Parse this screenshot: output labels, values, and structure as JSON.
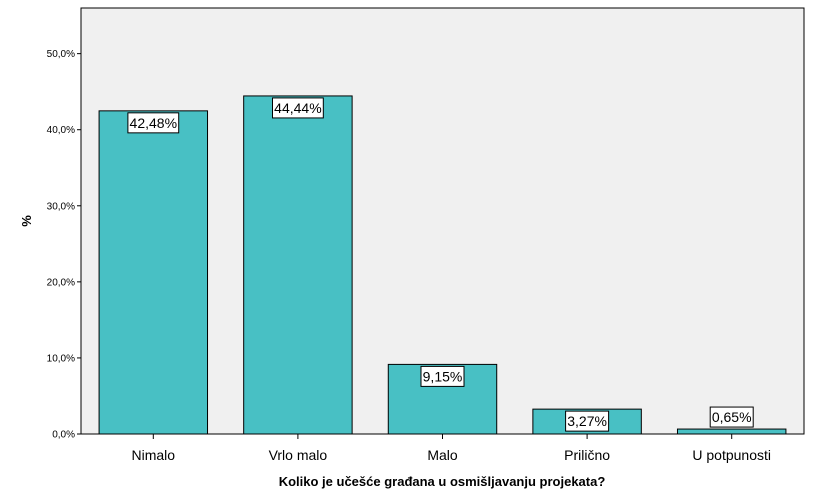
{
  "chart_data": {
    "type": "bar",
    "categories": [
      "Nimalo",
      "Vrlo malo",
      "Malo",
      "Prilično",
      "U potpunosti"
    ],
    "values": [
      42.48,
      44.44,
      9.15,
      3.27,
      0.65
    ],
    "data_labels": [
      "42,48%",
      "44,44%",
      "9,15%",
      "3,27%",
      "0,65%"
    ],
    "xlabel": "Koliko je učešće građana u osmišljavanju projekata?",
    "ylabel": "%",
    "ylim": [
      0,
      56
    ],
    "yticks": [
      0,
      10,
      20,
      30,
      40,
      50
    ],
    "ytick_labels": [
      "0,0%",
      "10,0%",
      "20,0%",
      "30,0%",
      "40,0%",
      "50,0%"
    ],
    "grid": false,
    "colors": {
      "bar": "#48C0C4",
      "plot_bg": "#F0F0F0",
      "border": "#000000"
    }
  }
}
